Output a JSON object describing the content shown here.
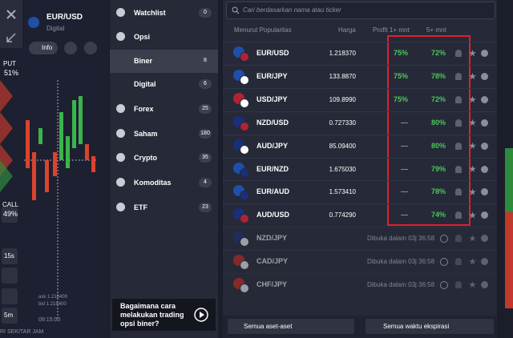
{
  "left_panel": {
    "asset": "EUR/USD",
    "asset_type": "Digital",
    "info": "Info",
    "put_label": "PUT",
    "put_percent": "51%",
    "call_label": "CALL",
    "call_percent": "49%",
    "timeframes": [
      "15s",
      "5m"
    ],
    "ask": "ask 1.218400",
    "bid": "bid 1.218400",
    "time": "09:15:00",
    "footer": "RI SEKITAR JAM"
  },
  "menu": {
    "items": [
      {
        "label": "Watchlist",
        "count": "0"
      },
      {
        "label": "Opsi"
      },
      {
        "label": "Biner",
        "count": "8"
      },
      {
        "label": "Digital",
        "count": "6"
      },
      {
        "label": "Forex",
        "count": "25"
      },
      {
        "label": "Saham",
        "count": "180"
      },
      {
        "label": "Crypto",
        "count": "35"
      },
      {
        "label": "Komoditas",
        "count": "4"
      },
      {
        "label": "ETF",
        "count": "23"
      }
    ],
    "promo": "Bagaimana cara melakukan trading opsi biner?"
  },
  "asset_list": {
    "search_placeholder": "Cari berdasarkan nama atau ticker",
    "columns": [
      "Menurut Popularitas",
      "Harga",
      "Profit 1+ mnt",
      "5+ mnt"
    ],
    "rows": [
      {
        "pair": "EUR/USD",
        "price": "1.218370",
        "profit_1": "75%",
        "profit_5": "72%"
      },
      {
        "pair": "EUR/JPY",
        "price": "133.8870",
        "profit_1": "75%",
        "profit_5": "78%"
      },
      {
        "pair": "USD/JPY",
        "price": "109.8990",
        "profit_1": "75%",
        "profit_5": "72%"
      },
      {
        "pair": "NZD/USD",
        "price": "0.727330",
        "profit_1": "—",
        "profit_5": "80%"
      },
      {
        "pair": "AUD/JPY",
        "price": "85.09400",
        "profit_1": "—",
        "profit_5": "80%"
      },
      {
        "pair": "EUR/NZD",
        "price": "1.675030",
        "profit_1": "—",
        "profit_5": "79%"
      },
      {
        "pair": "EUR/AUD",
        "price": "1.573410",
        "profit_1": "—",
        "profit_5": "78%"
      },
      {
        "pair": "AUD/USD",
        "price": "0.774290",
        "profit_1": "—",
        "profit_5": "74%"
      },
      {
        "pair": "NZD/JPY",
        "status": "Dibuka dalam 03j 36:58"
      },
      {
        "pair": "CAD/JPY",
        "status": "Dibuka dalam 03j 36:58"
      },
      {
        "pair": "CHF/JPY",
        "status": "Dibuka dalam 03j 36:58"
      }
    ],
    "filters": [
      "Semua aset-aset",
      "Semua waktu ekspirasi"
    ]
  }
}
